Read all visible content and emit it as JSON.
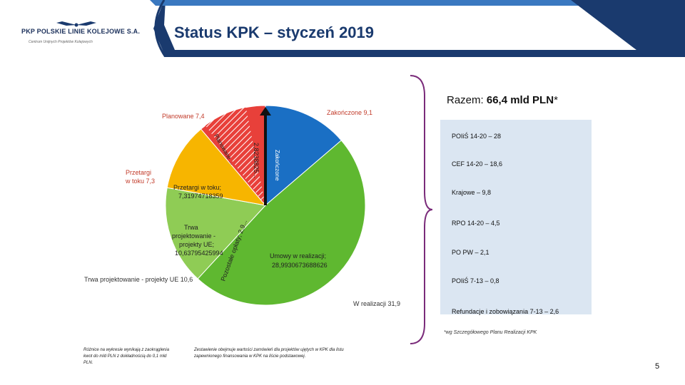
{
  "header": {
    "title": "Status KPK – styczeń 2019",
    "company": "PKP POLSKIE LINIE KOLEJOWE S.A.",
    "tagline": "Centrum Unijnych Projektów Kolejowych",
    "colors": {
      "navy": "#1a3a6e",
      "light_blue": "#3a78c0"
    }
  },
  "chart_data": {
    "type": "pie",
    "unit": "mld PLN",
    "slices": [
      {
        "name": "Zakończone",
        "value": 9.1,
        "label": "Zakończone 9,1",
        "color": "#1a6fc4"
      },
      {
        "name": "W realizacji",
        "value": 31.9,
        "label": "W realizacji 31,9",
        "color": "#5fb830"
      },
      {
        "name": "Trwa projektowanie - projekty UE",
        "value": 10.6,
        "label": "Trwa projektowanie - projekty UE 10,6",
        "color": "#8fcc55"
      },
      {
        "name": "Przetargi w toku",
        "value": 7.3,
        "label": "Przetargi w toku 7,3",
        "color": "#f7b500"
      },
      {
        "name": "Planowane",
        "value": 7.4,
        "label": "Planowane 7,4",
        "color": "#e8403a"
      }
    ],
    "inner_labels": {
      "umowy": "Umowy w realizacji; 28,9930673688626",
      "trwa_projektowanie": "Trwa projektowanie - projekty UE; 10,63795425994",
      "przetargi": "Przetargi w toku; 7,31974718359",
      "pozostale_oplaty": "Pozostałe opłaty; 2,9...",
      "planowane_rotated": "Planowane ...",
      "zakonczone_rotated": "2,8238825...",
      "arrow_label": "Zakończone"
    }
  },
  "total": {
    "label": "Razem:",
    "value": "66,4 mld PLN",
    "mark": "*"
  },
  "sources": [
    "POIiŚ 14-20 – 28",
    "CEF 14-20 – 18,6",
    "Krajowe – 9,8",
    "RPO 14-20 – 4,5",
    "PO PW – 2,1",
    "POIiŚ 7-13 – 0,8",
    "Refundacje i zobowiązania 7-13 – 2,6"
  ],
  "footnote": "*wg Szczegółowego Planu Realizacji KPK",
  "notes": {
    "left": "Różnice na wykresie wynikają z zaokrąglenia kwot do mld PLN z dokładnością do 0,1 mld PLN.",
    "right": "Zestawienie obejmuje wartości zamówień dla projektów ujętych w KPK dla listu zapewnionego finansowania w KPK na liście podstawowej."
  },
  "page_number": "5"
}
